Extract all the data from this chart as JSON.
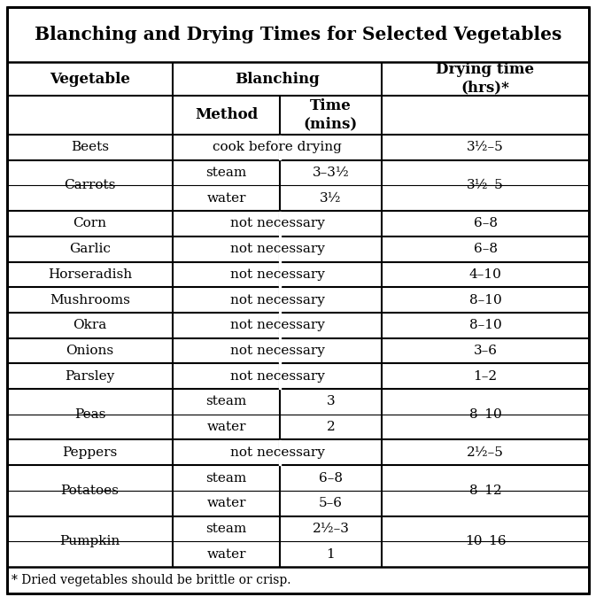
{
  "title": "Blanching and Drying Times for Selected Vegetables",
  "footnote": "* Dried vegetables should be brittle or crisp.",
  "rows": [
    {
      "veg": "Beets",
      "method": "cook before drying",
      "time": "",
      "drying": "3½–5",
      "span": true
    },
    {
      "veg": "Carrots",
      "method": "steam",
      "time": "3–3½",
      "drying": "3½–5",
      "span": false
    },
    {
      "veg": "",
      "method": "water",
      "time": "3½",
      "drying": "",
      "span": false
    },
    {
      "veg": "Corn",
      "method": "not necessary",
      "time": "",
      "drying": "6–8",
      "span": true
    },
    {
      "veg": "Garlic",
      "method": "not necessary",
      "time": "",
      "drying": "6–8",
      "span": true
    },
    {
      "veg": "Horseradish",
      "method": "not necessary",
      "time": "",
      "drying": "4–10",
      "span": true
    },
    {
      "veg": "Mushrooms",
      "method": "not necessary",
      "time": "",
      "drying": "8–10",
      "span": true
    },
    {
      "veg": "Okra",
      "method": "not necessary",
      "time": "",
      "drying": "8–10",
      "span": true
    },
    {
      "veg": "Onions",
      "method": "not necessary",
      "time": "",
      "drying": "3–6",
      "span": true
    },
    {
      "veg": "Parsley",
      "method": "not necessary",
      "time": "",
      "drying": "1–2",
      "span": true
    },
    {
      "veg": "Peas",
      "method": "steam",
      "time": "3",
      "drying": "8–10",
      "span": false
    },
    {
      "veg": "",
      "method": "water",
      "time": "2",
      "drying": "",
      "span": false
    },
    {
      "veg": "Peppers",
      "method": "not necessary",
      "time": "",
      "drying": "2½–5",
      "span": true
    },
    {
      "veg": "Potatoes",
      "method": "steam",
      "time": "6–8",
      "drying": "8–12",
      "span": false
    },
    {
      "veg": "",
      "method": "water",
      "time": "5–6",
      "drying": "",
      "span": false
    },
    {
      "veg": "Pumpkin",
      "method": "steam",
      "time": "2½–3",
      "drying": "10–16",
      "span": false
    },
    {
      "veg": "",
      "method": "water",
      "time": "1",
      "drying": "",
      "span": false
    }
  ],
  "background": "#ffffff",
  "border": "#000000",
  "text": "#000000",
  "title_fs": 14.5,
  "hdr_fs": 12,
  "cell_fs": 11,
  "foot_fs": 10
}
